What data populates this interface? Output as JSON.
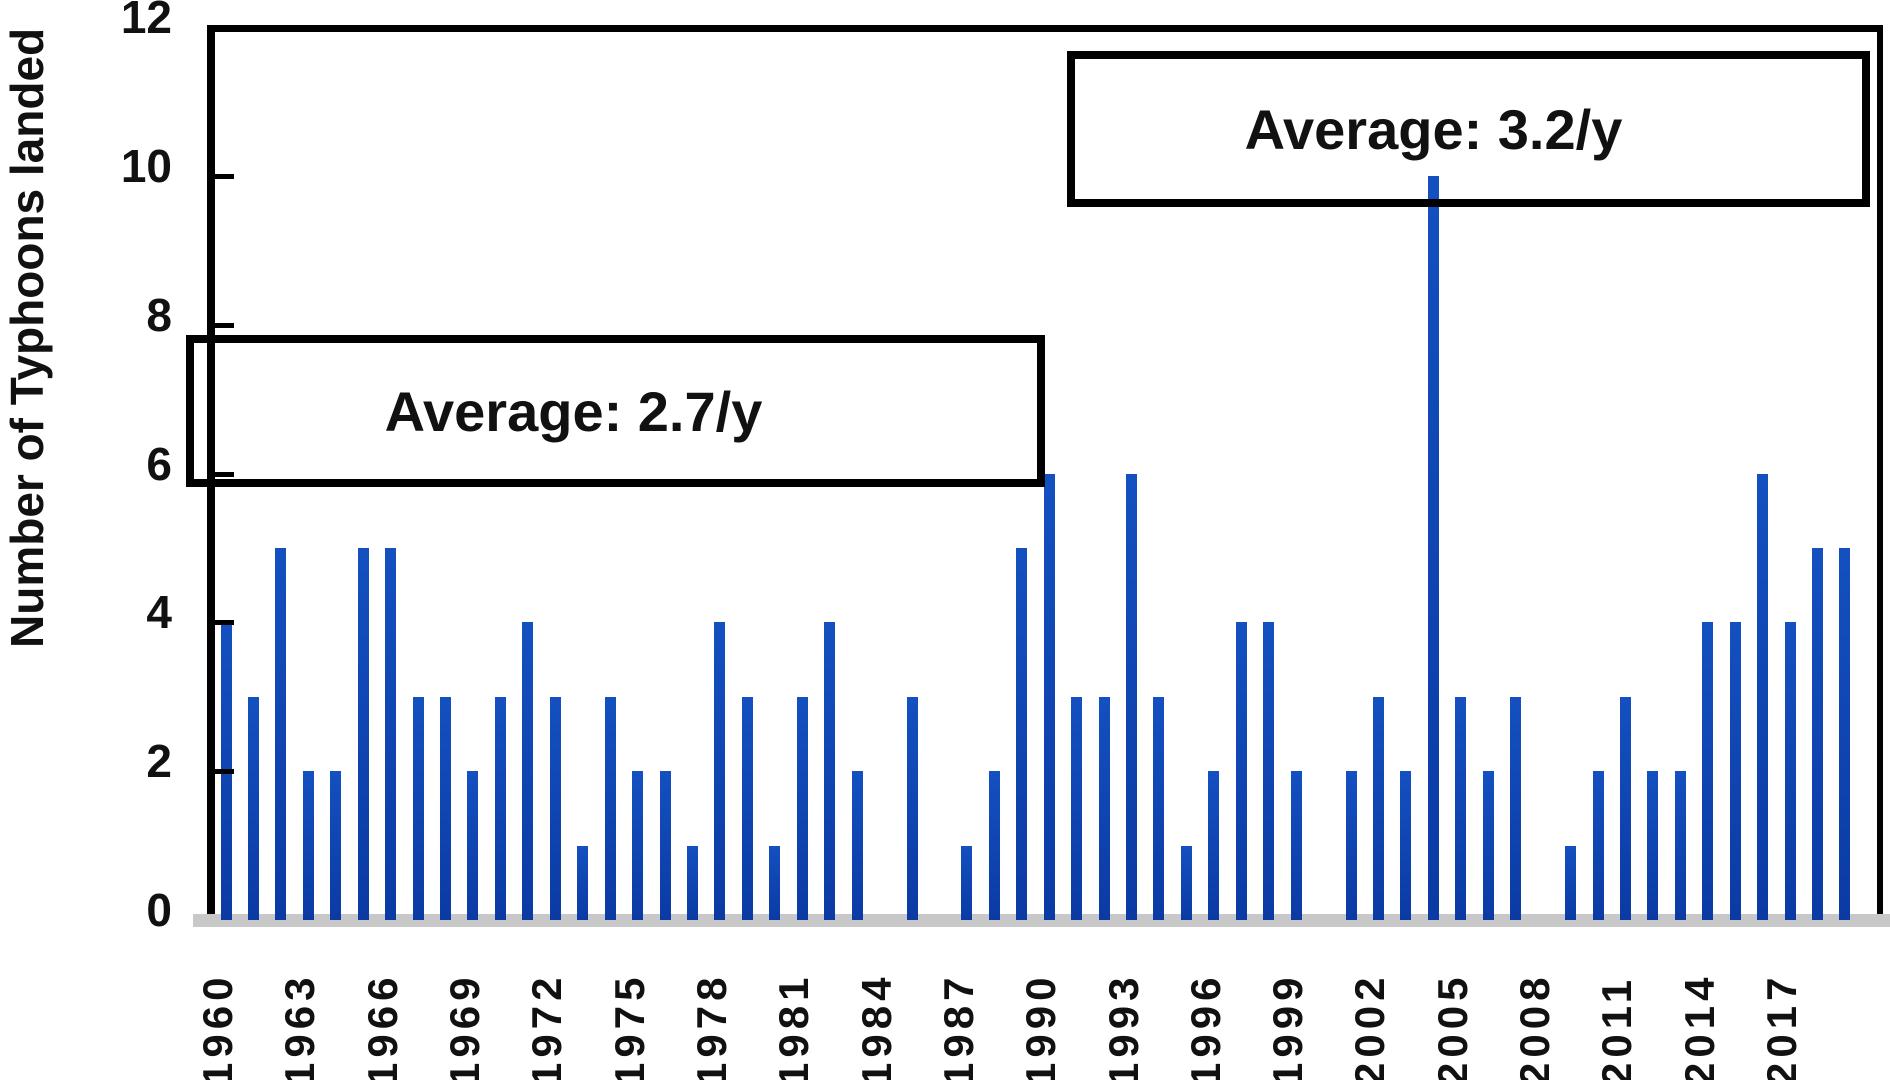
{
  "y_axis": {
    "title": "Number of Typhoons landed",
    "tick_labels": [
      "0",
      "2",
      "4",
      "6",
      "8",
      "10",
      "12"
    ],
    "tick_values": [
      0,
      2,
      4,
      6,
      8,
      10,
      12
    ]
  },
  "x_axis": {
    "tick_labels": [
      "1960",
      "1963",
      "1966",
      "1969",
      "1972",
      "1975",
      "1978",
      "1981",
      "1984",
      "1987",
      "1990",
      "1993",
      "1996",
      "1999",
      "2002",
      "2005",
      "2008",
      "2011",
      "2014",
      "2017"
    ],
    "tick_interval_years": 3
  },
  "annotations": {
    "first_period": "Average: 2.7/y",
    "second_period": "Average: 3.2/y"
  },
  "colors": {
    "bar": "#0c41b2",
    "bar_top": "#1450c0",
    "bar_bottom": "#0b3aa4",
    "axis": "#000000",
    "baseline": "#c8c8c8",
    "text": "#111111",
    "background": "#ffffff"
  },
  "chart_data": {
    "type": "bar",
    "title": "",
    "xlabel": "",
    "ylabel": "Number of Typhoons landed",
    "ylim": [
      0,
      12
    ],
    "grid": false,
    "legend": false,
    "x": [
      1960,
      1961,
      1962,
      1963,
      1964,
      1965,
      1966,
      1967,
      1968,
      1969,
      1970,
      1971,
      1972,
      1973,
      1974,
      1975,
      1976,
      1977,
      1978,
      1979,
      1980,
      1981,
      1982,
      1983,
      1984,
      1985,
      1986,
      1987,
      1988,
      1989,
      1990,
      1991,
      1992,
      1993,
      1994,
      1995,
      1996,
      1997,
      1998,
      1999,
      2000,
      2001,
      2002,
      2003,
      2004,
      2005,
      2006,
      2007,
      2008,
      2009,
      2010,
      2011,
      2012,
      2013,
      2014,
      2015,
      2016,
      2017,
      2018,
      2019
    ],
    "values": [
      4,
      3,
      5,
      2,
      2,
      5,
      5,
      3,
      3,
      2,
      3,
      4,
      3,
      1,
      3,
      2,
      2,
      1,
      4,
      3,
      1,
      3,
      4,
      2,
      0,
      3,
      0,
      1,
      2,
      5,
      6,
      3,
      3,
      6,
      3,
      1,
      2,
      4,
      4,
      2,
      0,
      2,
      3,
      2,
      10,
      3,
      2,
      3,
      0,
      1,
      2,
      3,
      2,
      2,
      4,
      4,
      6,
      4,
      5,
      5
    ],
    "annotations": [
      {
        "text": "Average: 2.7/y",
        "period": "1960-1989"
      },
      {
        "text": "Average: 3.2/y",
        "period": "1990-2019"
      }
    ]
  }
}
